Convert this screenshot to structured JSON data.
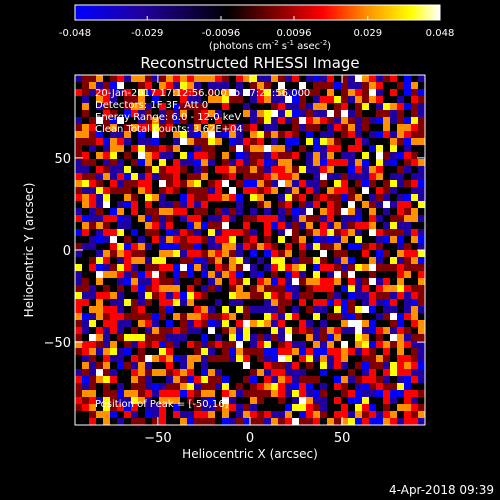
{
  "chart_data": {
    "type": "heatmap",
    "title": "Reconstructed RHESSI Image",
    "xlabel": "Heliocentric X (arcsec)",
    "ylabel": "Heliocentric Y (arcsec)",
    "xlim": [
      -95,
      95
    ],
    "ylim": [
      -95,
      95
    ],
    "x_ticks": [
      -50,
      0,
      50
    ],
    "y_ticks": [
      -50,
      0,
      50
    ],
    "colorbar": {
      "range": [
        -0.048,
        0.048
      ],
      "tick_labels": [
        "-0.048",
        "-0.029",
        "-0.0096",
        "0.0096",
        "0.029",
        "0.048"
      ],
      "units_prefix": "(photons cm",
      "units_exp1": "-2",
      "units_mid": " s",
      "units_exp2": "-1",
      "units_mid2": " asec",
      "units_exp3": "-2",
      "units_suffix": ")",
      "colormap": [
        "#0000ff",
        "#2000a0",
        "#000000",
        "#800000",
        "#ff0000",
        "#ff9000",
        "#ffff00",
        "#ffffff"
      ]
    },
    "annotations": [
      "20-Jan-2017 17:12:56.000 to 17:22:56.000",
      "Detectors: 1F 3F, Att 0",
      "Energy Range: 6.0 - 12.0 keV",
      "Clean     Total counts: 3.62E+04"
    ],
    "peak_label": "Position of Peak = [-50,16]",
    "timestamp": "4-Apr-2018 09:39"
  }
}
